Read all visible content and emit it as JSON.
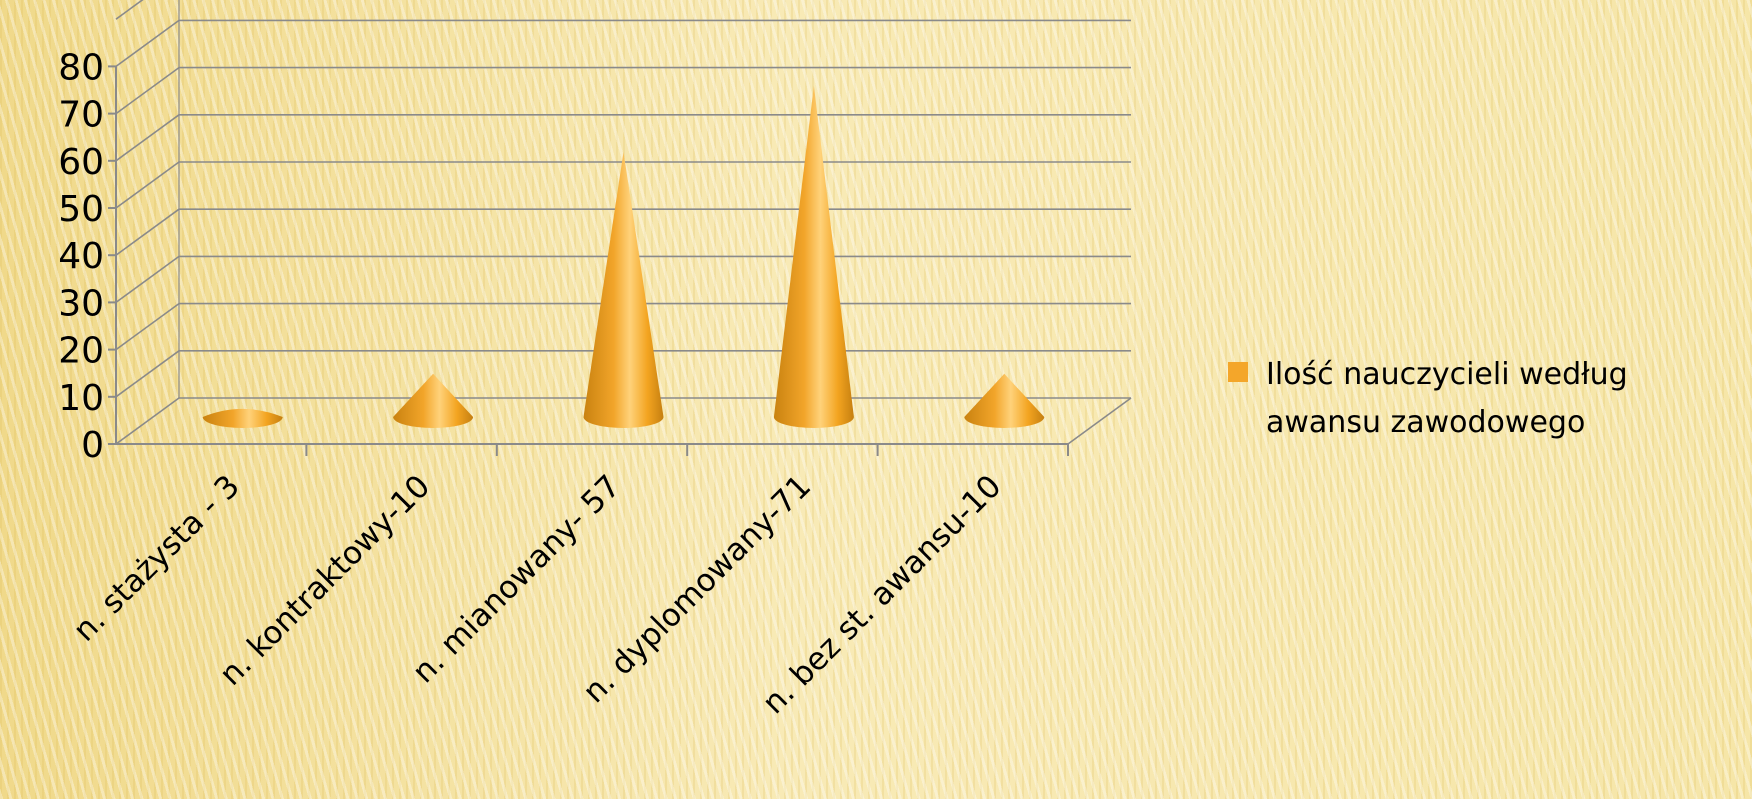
{
  "chart_data": {
    "type": "bar",
    "bar_shape": "cone",
    "three_d": true,
    "categories": [
      "n. stażysta - 3",
      "n. kontraktowy-10",
      "n. mianowany- 57",
      "n. dyplomowany-71",
      "n. bez st. awansu-10"
    ],
    "series": [
      {
        "name": "Ilość nauczycieli według awansu zawodowego",
        "values": [
          3,
          10,
          57,
          71,
          10
        ]
      }
    ],
    "yticks": [
      "0",
      "10",
      "20",
      "30",
      "40",
      "50",
      "60",
      "70",
      "80"
    ],
    "ylim": [
      0,
      90
    ],
    "grid": true,
    "legend": {
      "position": "right",
      "lines": [
        "Ilość nauczycieli według",
        "awansu zawodowego"
      ]
    },
    "colors": {
      "cone_dark": "#d08a10",
      "cone_mid": "#f5a623",
      "cone_light": "#ffd37a",
      "grid": "#8a8a8a",
      "legend_marker": "#f4a62a"
    }
  }
}
